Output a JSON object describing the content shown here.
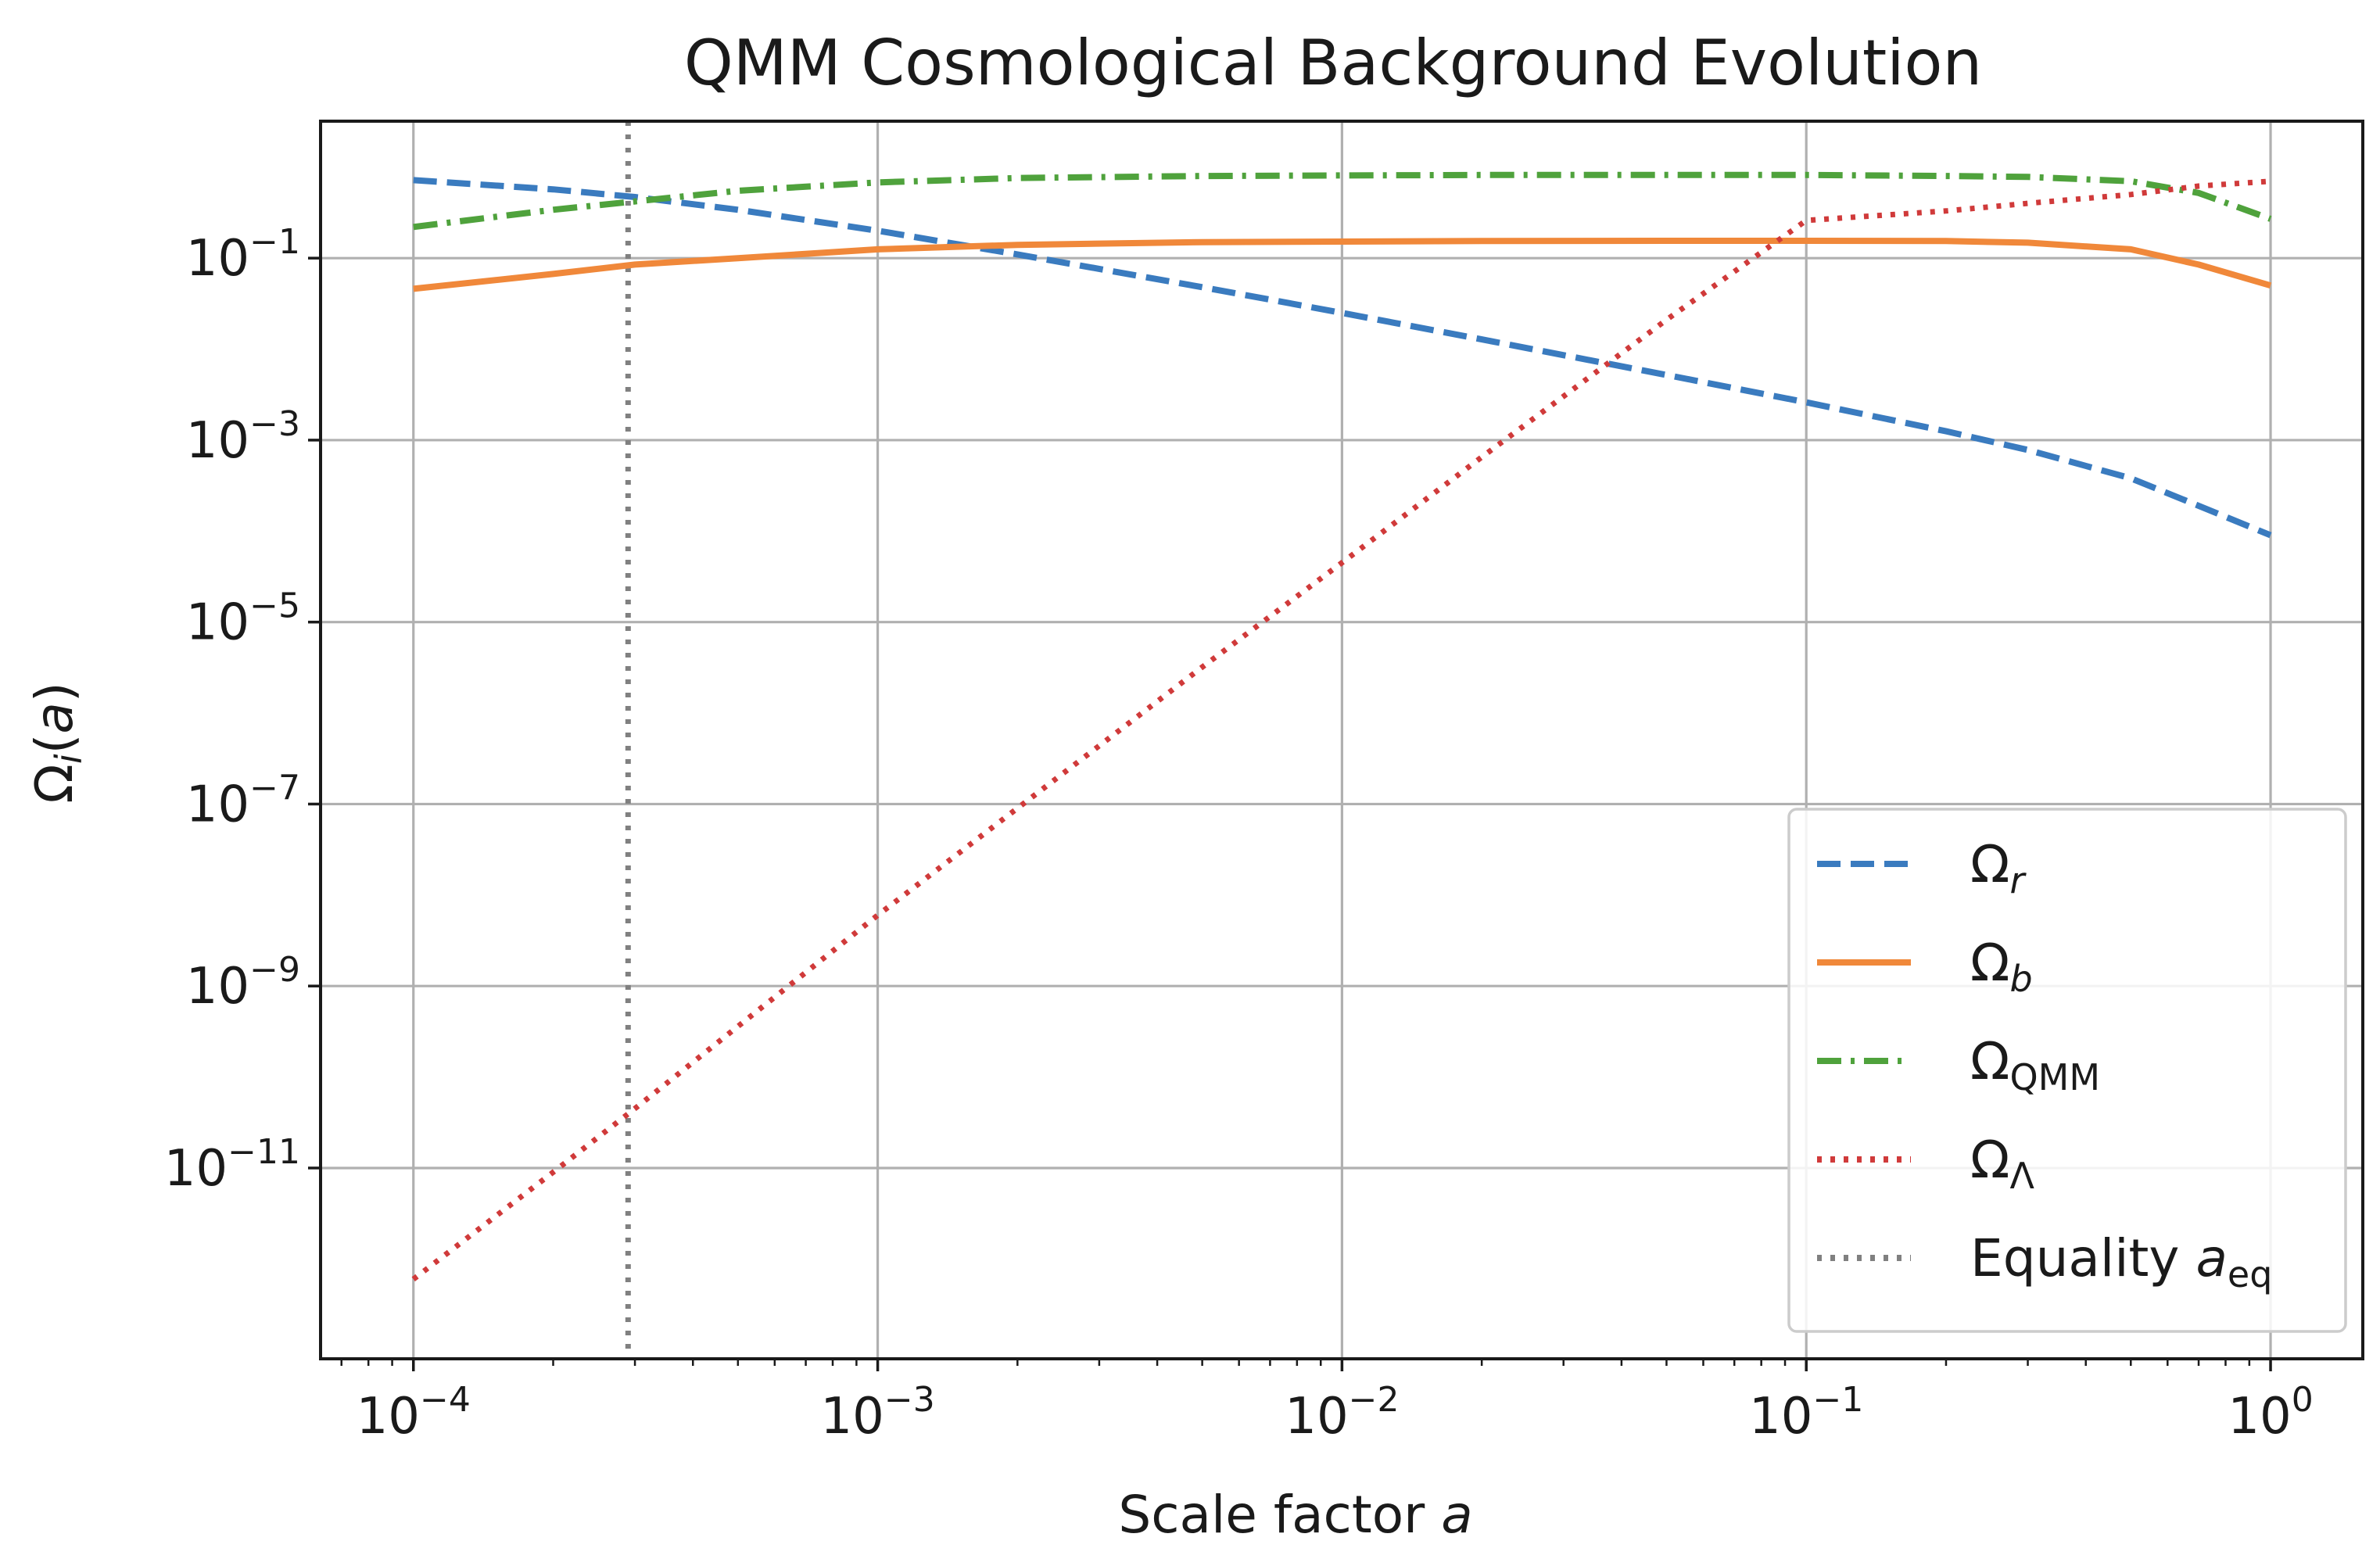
{
  "chart_data": {
    "type": "line",
    "title": "QMM Cosmological Background Evolution",
    "xlabel": "Scale factor a",
    "ylabel": "Ω_i(a)",
    "xscale": "log",
    "yscale": "log",
    "xlim": [
      6.31e-05,
      1.58
    ],
    "ylim": [
      8e-14,
      3.2
    ],
    "grid": true,
    "legend_position": "lower-right",
    "x_ticks": [
      {
        "value": 0.0001,
        "base": "10",
        "exp": "−4"
      },
      {
        "value": 0.001,
        "base": "10",
        "exp": "−3"
      },
      {
        "value": 0.01,
        "base": "10",
        "exp": "−2"
      },
      {
        "value": 0.1,
        "base": "10",
        "exp": "−1"
      },
      {
        "value": 1,
        "base": "10",
        "exp": "0"
      }
    ],
    "y_ticks": [
      {
        "value": 0.1,
        "base": "10",
        "exp": "−1"
      },
      {
        "value": 0.001,
        "base": "10",
        "exp": "−3"
      },
      {
        "value": 1e-05,
        "base": "10",
        "exp": "−5"
      },
      {
        "value": 1e-07,
        "base": "10",
        "exp": "−7"
      },
      {
        "value": 1e-09,
        "base": "10",
        "exp": "−9"
      },
      {
        "value": 1e-11,
        "base": "10",
        "exp": "−11"
      }
    ],
    "x": [
      0.0001,
      0.0002,
      0.0003,
      0.0005,
      0.001,
      0.002,
      0.005,
      0.01,
      0.02,
      0.05,
      0.1,
      0.2,
      0.3,
      0.5,
      0.7,
      1.0
    ],
    "series": [
      {
        "name": "Ω_r",
        "label_base": "Ω",
        "label_sub": "r",
        "sub_italic": true,
        "color": "#3a7bbf",
        "dash": "dashed",
        "values": [
          0.72,
          0.57,
          0.47,
          0.34,
          0.2,
          0.11,
          0.048,
          0.025,
          0.0128,
          0.0052,
          0.0026,
          0.00125,
          0.00078,
          0.00038,
          0.00019,
          9e-05
        ]
      },
      {
        "name": "Ω_b",
        "label_base": "Ω",
        "label_sub": "b",
        "sub_italic": true,
        "color": "#f0883a",
        "dash": "solid",
        "values": [
          0.046,
          0.067,
          0.085,
          0.1,
          0.125,
          0.14,
          0.15,
          0.152,
          0.154,
          0.155,
          0.155,
          0.154,
          0.148,
          0.125,
          0.085,
          0.05
        ]
      },
      {
        "name": "Ω_QMM",
        "label_base": "Ω",
        "label_sub": "QMM",
        "sub_italic": false,
        "color": "#4fa23c",
        "dash": "dashdot",
        "values": [
          0.22,
          0.34,
          0.42,
          0.55,
          0.68,
          0.76,
          0.8,
          0.81,
          0.82,
          0.82,
          0.82,
          0.8,
          0.78,
          0.7,
          0.52,
          0.27
        ]
      },
      {
        "name": "Ω_Λ",
        "label_base": "Ω",
        "label_sub": "Λ",
        "sub_italic": false,
        "color": "#d03a3a",
        "dash": "dotted",
        "values": [
          6e-13,
          9e-12,
          4.5e-11,
          3.6e-10,
          6e-09,
          9e-08,
          3.2e-06,
          4.5e-05,
          0.00065,
          0.021,
          0.26,
          0.33,
          0.4,
          0.5,
          0.62,
          0.7
        ]
      }
    ],
    "vline": {
      "name": "Equality a_eq",
      "label_main": "Equality ",
      "label_var": "a",
      "label_sub": "eq",
      "x": 0.00029,
      "color": "#808080",
      "dash": "dotted"
    }
  }
}
